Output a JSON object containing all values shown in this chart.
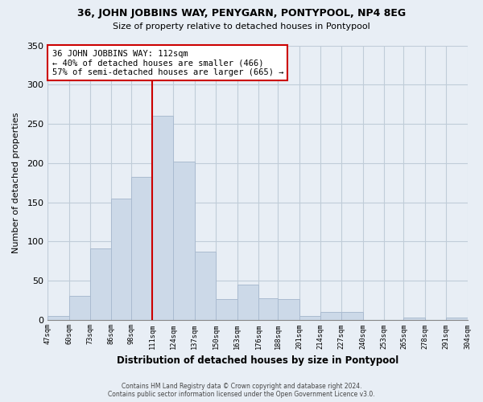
{
  "title": "36, JOHN JOBBINS WAY, PENYGARN, PONTYPOOL, NP4 8EG",
  "subtitle": "Size of property relative to detached houses in Pontypool",
  "xlabel": "Distribution of detached houses by size in Pontypool",
  "ylabel": "Number of detached properties",
  "bar_color": "#ccd9e8",
  "bar_edge_color": "#aabbd0",
  "vline_x": 111,
  "vline_color": "#cc0000",
  "annotation_line1": "36 JOHN JOBBINS WAY: 112sqm",
  "annotation_line2": "← 40% of detached houses are smaller (466)",
  "annotation_line3": "57% of semi-detached houses are larger (665) →",
  "annotation_box_facecolor": "white",
  "annotation_box_edgecolor": "#cc0000",
  "bins": [
    47,
    60,
    73,
    86,
    98,
    111,
    124,
    137,
    150,
    163,
    176,
    188,
    201,
    214,
    227,
    240,
    253,
    265,
    278,
    291,
    304
  ],
  "heights": [
    5,
    31,
    91,
    155,
    182,
    260,
    202,
    87,
    27,
    45,
    28,
    27,
    5,
    10,
    10,
    0,
    0,
    3,
    0,
    3
  ],
  "ylim": [
    0,
    350
  ],
  "yticks": [
    0,
    50,
    100,
    150,
    200,
    250,
    300,
    350
  ],
  "footer_line1": "Contains HM Land Registry data © Crown copyright and database right 2024.",
  "footer_line2": "Contains public sector information licensed under the Open Government Licence v3.0.",
  "bg_color": "#e8eef5",
  "grid_color": "#c0ccd8"
}
